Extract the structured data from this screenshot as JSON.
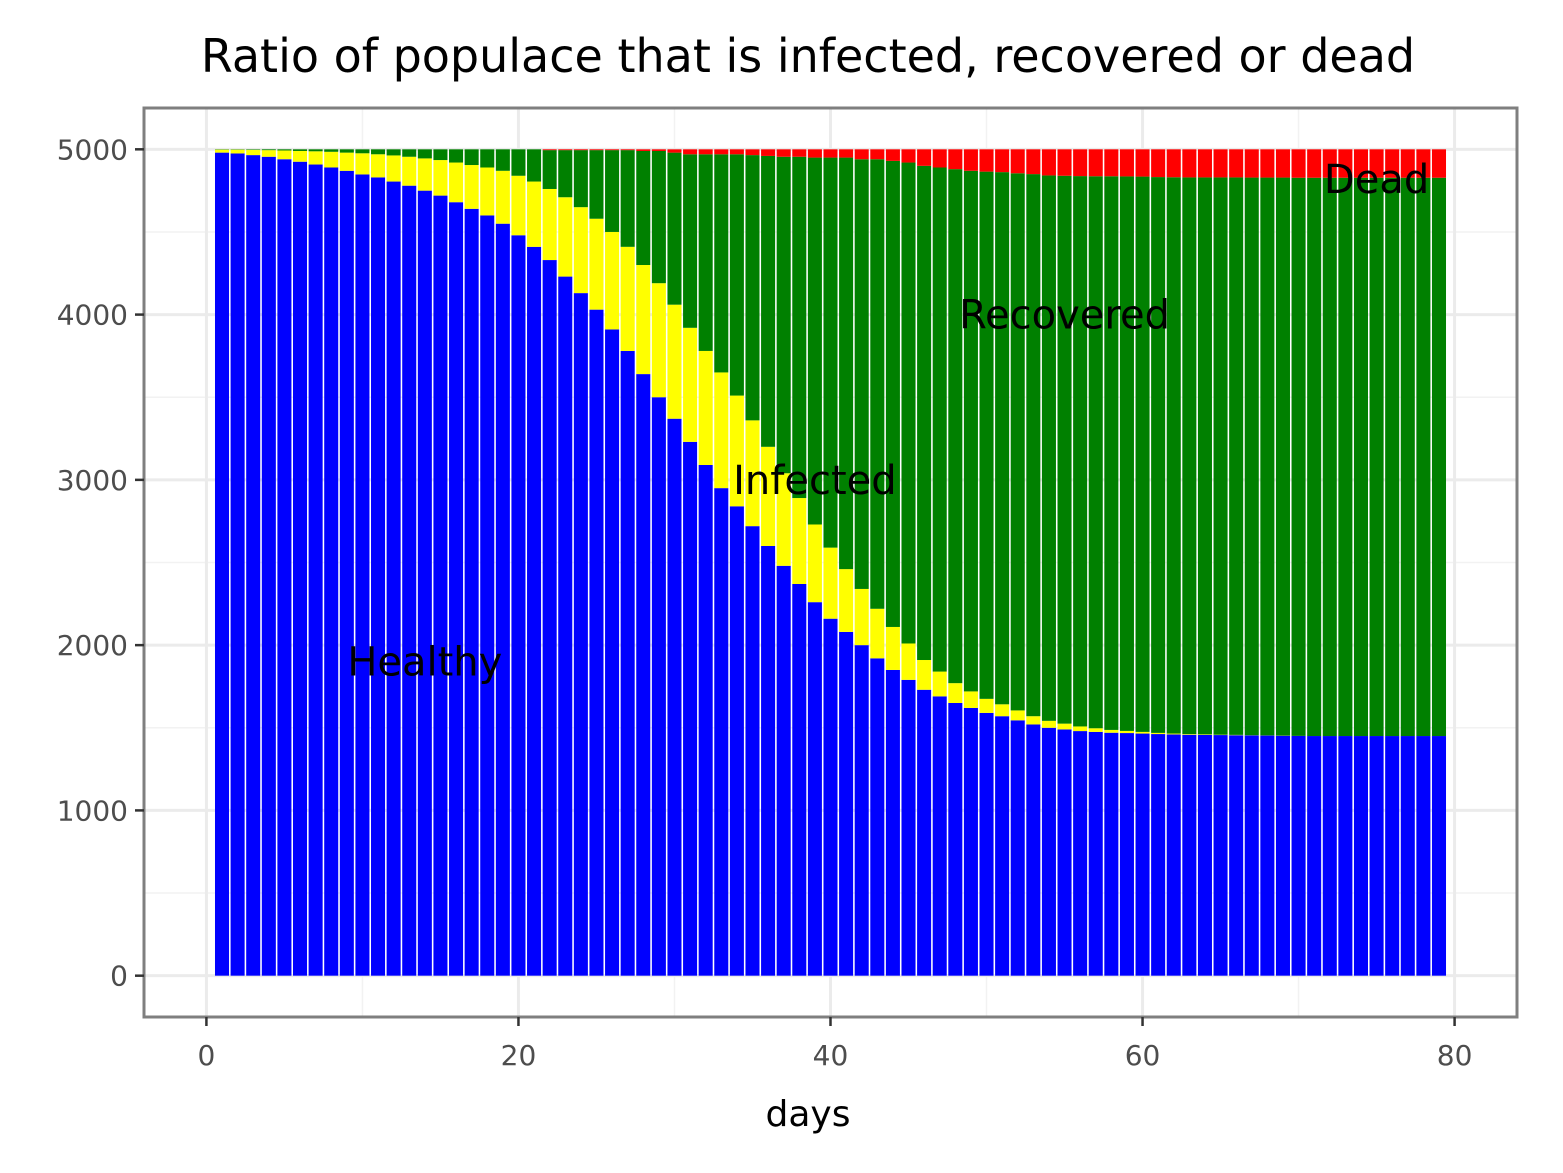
{
  "chart_data": {
    "type": "bar",
    "stacked": true,
    "title": "Ratio of populace that is infected, recovered or dead",
    "xlabel": "days",
    "ylabel": "",
    "xlim": [
      -4,
      84
    ],
    "ylim": [
      -250,
      5250
    ],
    "x_ticks": [
      0,
      20,
      40,
      60,
      80
    ],
    "y_ticks": [
      0,
      1000,
      2000,
      3000,
      4000,
      5000
    ],
    "grid": true,
    "legend": "none",
    "x": [
      1,
      2,
      3,
      4,
      5,
      6,
      7,
      8,
      9,
      10,
      11,
      12,
      13,
      14,
      15,
      16,
      17,
      18,
      19,
      20,
      21,
      22,
      23,
      24,
      25,
      26,
      27,
      28,
      29,
      30,
      31,
      32,
      33,
      34,
      35,
      36,
      37,
      38,
      39,
      40,
      41,
      42,
      43,
      44,
      45,
      46,
      47,
      48,
      49,
      50,
      51,
      52,
      53,
      54,
      55,
      56,
      57,
      58,
      59,
      60,
      61,
      62,
      63,
      64,
      65,
      66,
      67,
      68,
      69,
      70,
      71,
      72,
      73,
      74,
      75,
      76,
      77,
      78,
      79
    ],
    "healthy": [
      4980,
      4975,
      4965,
      4955,
      4940,
      4925,
      4908,
      4890,
      4870,
      4848,
      4830,
      4805,
      4780,
      4750,
      4720,
      4680,
      4640,
      4600,
      4550,
      4480,
      4410,
      4330,
      4230,
      4130,
      4030,
      3910,
      3780,
      3640,
      3500,
      3370,
      3230,
      3090,
      2950,
      2840,
      2720,
      2600,
      2480,
      2370,
      2260,
      2160,
      2080,
      2000,
      1920,
      1850,
      1790,
      1730,
      1690,
      1650,
      1620,
      1590,
      1570,
      1545,
      1520,
      1500,
      1490,
      1480,
      1475,
      1470,
      1468,
      1465,
      1462,
      1460,
      1458,
      1457,
      1456,
      1455,
      1454,
      1453,
      1452,
      1451,
      1450,
      1450,
      1450,
      1450,
      1450,
      1450,
      1450,
      1450,
      1450
    ],
    "infected": [
      18,
      23,
      32,
      40,
      53,
      65,
      80,
      95,
      110,
      128,
      140,
      158,
      175,
      195,
      215,
      240,
      265,
      290,
      320,
      360,
      395,
      430,
      480,
      520,
      550,
      590,
      630,
      660,
      690,
      690,
      690,
      690,
      700,
      670,
      640,
      600,
      560,
      520,
      470,
      430,
      380,
      340,
      300,
      260,
      220,
      180,
      150,
      120,
      100,
      85,
      72,
      60,
      50,
      42,
      35,
      28,
      22,
      17,
      13,
      10,
      7,
      5,
      4,
      3,
      2,
      2,
      1,
      1,
      1,
      0,
      0,
      0,
      0,
      0,
      0,
      0,
      0,
      0,
      0
    ],
    "recovered": [
      2,
      2,
      3,
      5,
      7,
      10,
      12,
      15,
      20,
      24,
      30,
      37,
      45,
      55,
      65,
      80,
      95,
      110,
      130,
      160,
      195,
      235,
      285,
      345,
      415,
      495,
      585,
      690,
      800,
      920,
      1050,
      1190,
      1320,
      1460,
      1605,
      1760,
      1915,
      2065,
      2220,
      2360,
      2490,
      2600,
      2720,
      2820,
      2910,
      2990,
      3050,
      3110,
      3150,
      3190,
      3220,
      3250,
      3280,
      3300,
      3315,
      3330,
      3340,
      3350,
      3355,
      3360,
      3363,
      3366,
      3368,
      3370,
      3372,
      3373,
      3374,
      3375,
      3376,
      3377,
      3378,
      3378,
      3378,
      3378,
      3378,
      3378,
      3378,
      3378,
      3378
    ],
    "dead": [
      0,
      0,
      0,
      0,
      0,
      0,
      0,
      0,
      0,
      0,
      0,
      0,
      0,
      0,
      0,
      0,
      0,
      0,
      0,
      0,
      0,
      5,
      5,
      5,
      5,
      5,
      5,
      10,
      10,
      20,
      30,
      30,
      30,
      30,
      35,
      40,
      45,
      45,
      50,
      50,
      50,
      60,
      60,
      70,
      80,
      100,
      110,
      120,
      130,
      135,
      138,
      145,
      150,
      158,
      160,
      162,
      163,
      163,
      164,
      165,
      168,
      169,
      170,
      170,
      170,
      170,
      171,
      171,
      171,
      172,
      172,
      172,
      172,
      172,
      172,
      172,
      172,
      172,
      172
    ],
    "series": [
      {
        "name": "Healthy",
        "key": "healthy",
        "color": "#0000ff"
      },
      {
        "name": "Infected",
        "key": "infected",
        "color": "#ffff00"
      },
      {
        "name": "Recovered",
        "key": "recovered",
        "color": "#008000"
      },
      {
        "name": "Dead",
        "key": "dead",
        "color": "#ff0000"
      }
    ],
    "annotations": [
      {
        "text": "Healthy",
        "x": 14,
        "y": 1900
      },
      {
        "text": "Infected",
        "x": 39,
        "y": 3000
      },
      {
        "text": "Recovered",
        "x": 55,
        "y": 4000
      },
      {
        "text": "Dead",
        "x": 75,
        "y": 4820
      }
    ]
  }
}
